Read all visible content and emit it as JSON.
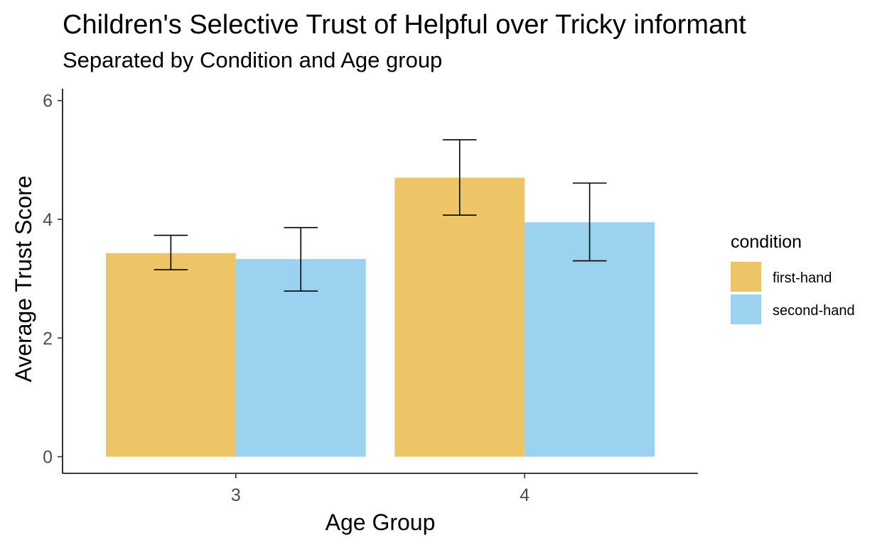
{
  "chart_data": {
    "type": "bar",
    "title": "Children's Selective Trust of Helpful over Tricky informant",
    "subtitle": "Separated by Condition and Age group",
    "xlabel": "Age Group",
    "ylabel": "Average Trust Score",
    "categories": [
      "3",
      "4"
    ],
    "yticks": [
      0,
      2,
      4,
      6
    ],
    "ylim": [
      -0.28,
      6.2
    ],
    "grid": false,
    "legend": {
      "title": "condition",
      "placement": "right"
    },
    "series": [
      {
        "name": "first-hand",
        "color": "#EEC566",
        "values": [
          3.43,
          4.7
        ],
        "err_low": [
          3.15,
          4.07
        ],
        "err_high": [
          3.73,
          5.34
        ]
      },
      {
        "name": "second-hand",
        "color": "#9BD2F0",
        "values": [
          3.33,
          3.95
        ],
        "err_low": [
          2.79,
          3.3
        ],
        "err_high": [
          3.86,
          4.61
        ]
      }
    ]
  }
}
